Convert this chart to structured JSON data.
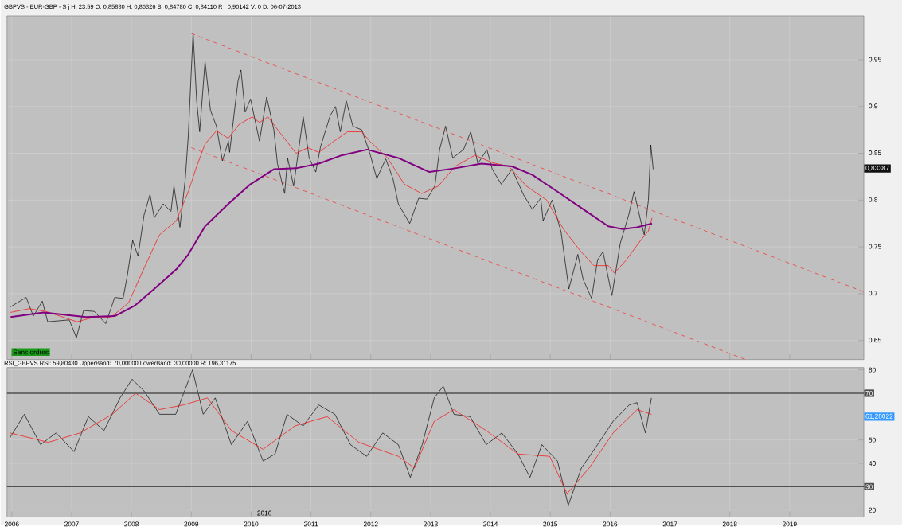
{
  "chart_data": [
    {
      "type": "line",
      "title": "GBPVS - EUR-GBP - S j H: 23:59 O: 0,85830 H: 0,86326 B: 0,84780 C: 0,84110 R : 0,90142 V: 0 D: 06-07-2013",
      "xlim": [
        2005.92,
        2020.24
      ],
      "xticks": [
        2006,
        2007,
        2008,
        2009,
        2010,
        2011,
        2012,
        2013,
        2014,
        2015,
        2016,
        2017,
        2018,
        2019
      ],
      "ylim": [
        0.6296,
        0.9968
      ],
      "yticks": [
        {
          "value": 0.65,
          "label": "0,65"
        },
        {
          "value": 0.7,
          "label": "0,7"
        },
        {
          "value": 0.75,
          "label": "0,75"
        },
        {
          "value": 0.8,
          "label": "0,8"
        },
        {
          "value": 0.85,
          "label": "0,85"
        },
        {
          "value": 0.9,
          "label": "0,9"
        },
        {
          "value": 0.95,
          "label": "0,95"
        }
      ],
      "tick_labels": "y",
      "grid": true,
      "marker": "none",
      "annotations": [
        "Sans ordres",
        {
          "text": "0,83387",
          "y": 0.83387
        }
      ],
      "series": [
        {
          "color": "#000000",
          "line_style": "solid",
          "x": [
            2005.98,
            2006.24,
            2006.36,
            2006.51,
            2006.6,
            2006.96,
            2007.08,
            2007.2,
            2007.38,
            2007.57,
            2007.72,
            2007.86,
            2007.93,
            2008.02,
            2008.11,
            2008.21,
            2008.31,
            2008.38,
            2008.53,
            2008.66,
            2008.71,
            2008.81,
            2008.9,
            2008.95,
            2009.03,
            2009.09,
            2009.14,
            2009.23,
            2009.32,
            2009.42,
            2009.52,
            2009.62,
            2009.64,
            2009.78,
            2009.83,
            2009.9,
            2009.99,
            2010.14,
            2010.26,
            2010.38,
            2010.44,
            2010.56,
            2010.61,
            2010.71,
            2010.87,
            2010.97,
            2011.08,
            2011.16,
            2011.32,
            2011.41,
            2011.49,
            2011.59,
            2011.7,
            2011.85,
            2011.98,
            2012.1,
            2012.25,
            2012.37,
            2012.46,
            2012.65,
            2012.8,
            2012.94,
            2013.07,
            2013.15,
            2013.25,
            2013.37,
            2013.55,
            2013.67,
            2013.79,
            2013.94,
            2014.03,
            2014.18,
            2014.36,
            2014.55,
            2014.7,
            2014.84,
            2014.88,
            2015.03,
            2015.18,
            2015.31,
            2015.46,
            2015.55,
            2015.69,
            2015.79,
            2015.88,
            2016.03,
            2016.17,
            2016.31,
            2016.4,
            2016.51,
            2016.57,
            2016.64,
            2016.68,
            2016.72
          ],
          "values": [
            0.686,
            0.696,
            0.676,
            0.692,
            0.67,
            0.672,
            0.653,
            0.682,
            0.681,
            0.668,
            0.696,
            0.695,
            0.719,
            0.757,
            0.74,
            0.784,
            0.806,
            0.781,
            0.796,
            0.788,
            0.815,
            0.771,
            0.823,
            0.869,
            0.979,
            0.906,
            0.873,
            0.948,
            0.896,
            0.879,
            0.842,
            0.863,
            0.851,
            0.927,
            0.939,
            0.894,
            0.908,
            0.863,
            0.91,
            0.875,
            0.839,
            0.807,
            0.845,
            0.815,
            0.889,
            0.845,
            0.83,
            0.857,
            0.89,
            0.9,
            0.873,
            0.906,
            0.879,
            0.875,
            0.851,
            0.823,
            0.844,
            0.823,
            0.796,
            0.775,
            0.802,
            0.801,
            0.815,
            0.854,
            0.879,
            0.845,
            0.854,
            0.873,
            0.839,
            0.854,
            0.833,
            0.817,
            0.833,
            0.806,
            0.79,
            0.802,
            0.778,
            0.8,
            0.766,
            0.705,
            0.742,
            0.715,
            0.695,
            0.736,
            0.745,
            0.698,
            0.754,
            0.784,
            0.809,
            0.778,
            0.763,
            0.8,
            0.859,
            0.833
          ]
        },
        {
          "color": "#ff0000",
          "line_style": "solid",
          "x": [
            2005.98,
            2006.29,
            2006.57,
            2007.09,
            2007.38,
            2007.66,
            2007.95,
            2008.23,
            2008.47,
            2008.75,
            2008.95,
            2009.09,
            2009.23,
            2009.42,
            2009.62,
            2009.8,
            2010.02,
            2010.14,
            2010.28,
            2010.47,
            2010.75,
            2010.95,
            2011.13,
            2011.32,
            2011.61,
            2011.85,
            2011.98,
            2012.28,
            2012.56,
            2012.85,
            2013.13,
            2013.41,
            2013.74,
            2014.03,
            2014.31,
            2014.6,
            2014.94,
            2015.22,
            2015.51,
            2015.73,
            2015.97,
            2016.07,
            2016.27,
            2016.51,
            2016.64,
            2016.7
          ],
          "values": [
            0.68,
            0.684,
            0.681,
            0.67,
            0.675,
            0.675,
            0.69,
            0.73,
            0.763,
            0.778,
            0.809,
            0.836,
            0.86,
            0.874,
            0.866,
            0.881,
            0.889,
            0.883,
            0.889,
            0.873,
            0.85,
            0.856,
            0.851,
            0.86,
            0.873,
            0.873,
            0.863,
            0.845,
            0.817,
            0.807,
            0.815,
            0.836,
            0.848,
            0.84,
            0.836,
            0.815,
            0.8,
            0.769,
            0.745,
            0.73,
            0.73,
            0.722,
            0.736,
            0.757,
            0.767,
            0.781
          ]
        },
        {
          "color": "#800080",
          "line_style": "solid",
          "x": [
            2005.98,
            2006.53,
            2007.24,
            2007.72,
            2008.05,
            2008.38,
            2008.75,
            2008.95,
            2009.23,
            2009.62,
            2009.99,
            2010.38,
            2010.75,
            2011.13,
            2011.52,
            2011.94,
            2012.46,
            2012.98,
            2013.41,
            2013.85,
            2014.36,
            2014.7,
            2015.12,
            2015.6,
            2015.97,
            2016.21,
            2016.45,
            2016.7
          ],
          "values": [
            0.675,
            0.68,
            0.675,
            0.676,
            0.687,
            0.705,
            0.726,
            0.742,
            0.772,
            0.796,
            0.817,
            0.833,
            0.834,
            0.839,
            0.848,
            0.854,
            0.845,
            0.83,
            0.834,
            0.839,
            0.836,
            0.827,
            0.809,
            0.788,
            0.772,
            0.769,
            0.771,
            0.775
          ]
        },
        {
          "color": "#ff2020",
          "line_style": "dashed",
          "x": [
            2009.0,
            2020.24
          ],
          "values": [
            0.978,
            0.702
          ]
        },
        {
          "color": "#ff2020",
          "line_style": "dashed",
          "x": [
            2009.0,
            2018.25
          ],
          "values": [
            0.856,
            0.63
          ]
        }
      ]
    },
    {
      "type": "line",
      "title": "RSI_GBPVS RSI: 59,80430 UpperBand: 70,00000 LowerBand: 30,00000 R: 196,31175",
      "xlim": [
        2005.92,
        2020.24
      ],
      "xticks": [
        2006,
        2007,
        2008,
        2009,
        2010,
        2011,
        2012,
        2013,
        2014,
        2015,
        2016,
        2017,
        2018,
        2019
      ],
      "ylim": [
        17,
        81
      ],
      "yticks": [
        20,
        40,
        50,
        80
      ],
      "grid": true,
      "marker": "none",
      "ref_lines": [
        {
          "axis": "y",
          "value": 70,
          "label": "70",
          "color": "#505050"
        },
        {
          "axis": "y",
          "value": 30,
          "label": "30",
          "color": "#505050"
        }
      ],
      "annotations": [
        "2010",
        "61,28022"
      ],
      "series": [
        {
          "color": "#000000",
          "line_style": "solid",
          "x": [
            2005.97,
            2006.21,
            2006.48,
            2006.74,
            2007.04,
            2007.28,
            2007.54,
            2007.81,
            2008.01,
            2008.21,
            2008.47,
            2008.74,
            2009.02,
            2009.2,
            2009.4,
            2009.67,
            2009.94,
            2010.2,
            2010.4,
            2010.6,
            2010.87,
            2011.13,
            2011.4,
            2011.66,
            2011.93,
            2012.2,
            2012.46,
            2012.66,
            2012.86,
            2013.06,
            2013.21,
            2013.39,
            2013.66,
            2013.93,
            2014.19,
            2014.46,
            2014.66,
            2014.86,
            2015.12,
            2015.3,
            2015.52,
            2015.79,
            2016.05,
            2016.32,
            2016.45,
            2016.59,
            2016.69
          ],
          "values": [
            51,
            61,
            48,
            53,
            45,
            60,
            54,
            68,
            76,
            71,
            61,
            61,
            80,
            61,
            68,
            48,
            58,
            41,
            44,
            61,
            56,
            65,
            61,
            48,
            43,
            53,
            48,
            34,
            48,
            68,
            73,
            61,
            60,
            48,
            53,
            44,
            34,
            48,
            41,
            22,
            38,
            48,
            58,
            65,
            66,
            53,
            68
          ]
        },
        {
          "color": "#ff0000",
          "line_style": "solid",
          "x": [
            2005.97,
            2006.61,
            2007.14,
            2007.68,
            2008.07,
            2008.47,
            2008.87,
            2009.27,
            2009.67,
            2010.2,
            2010.73,
            2011.27,
            2011.8,
            2012.46,
            2012.73,
            2013.06,
            2013.39,
            2013.93,
            2014.46,
            2014.99,
            2015.28,
            2015.65,
            2016.05,
            2016.45,
            2016.69
          ],
          "values": [
            53,
            49,
            53,
            61,
            70,
            63,
            65,
            68,
            54,
            46,
            56,
            60,
            49,
            43,
            38,
            58,
            63,
            54,
            44,
            43,
            27,
            38,
            53,
            63,
            61
          ]
        }
      ]
    }
  ]
}
